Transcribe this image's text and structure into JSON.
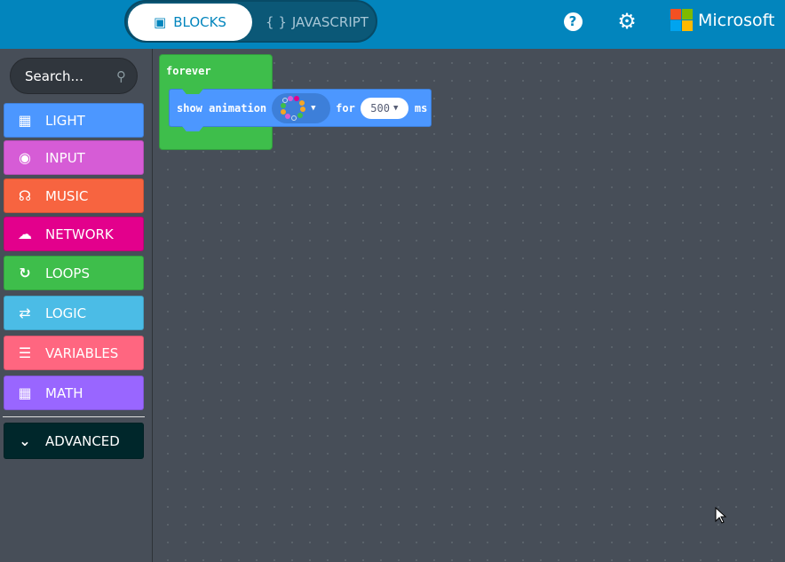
{
  "header": {
    "tabs": [
      {
        "label": "BLOCKS",
        "icon": "puzzle-icon",
        "active": true
      },
      {
        "label": "JAVASCRIPT",
        "icon": "braces-icon",
        "active": false
      }
    ],
    "help_icon": "question-circle-icon",
    "settings_icon": "gear-icon",
    "brand": "Microsoft",
    "brand_colors": [
      "#f25022",
      "#7fba00",
      "#00a4ef",
      "#ffb900"
    ]
  },
  "sidebar": {
    "search_placeholder": "Search...",
    "categories": [
      {
        "label": "LIGHT",
        "icon": "grid-icon",
        "color": "#4c97ff"
      },
      {
        "label": "INPUT",
        "icon": "target-icon",
        "color": "#d65cd6"
      },
      {
        "label": "MUSIC",
        "icon": "headphones-icon",
        "color": "#f76440"
      },
      {
        "label": "NETWORK",
        "icon": "chat-bubbles-icon",
        "color": "#e3008c"
      },
      {
        "label": "LOOPS",
        "icon": "refresh-icon",
        "color": "#3ebe4b"
      },
      {
        "label": "LOGIC",
        "icon": "shuffle-icon",
        "color": "#4bbce6"
      },
      {
        "label": "VARIABLES",
        "icon": "list-icon",
        "color": "#ff6680"
      },
      {
        "label": "MATH",
        "icon": "calculator-icon",
        "color": "#9966ff"
      }
    ],
    "advanced": {
      "label": "ADVANCED",
      "icon": "chevron-down-icon",
      "color": "#00272b"
    }
  },
  "workspace": {
    "forever_label": "forever",
    "show_block": {
      "label": "show animation",
      "for_label": "for",
      "duration": "500",
      "unit": "ms"
    }
  }
}
